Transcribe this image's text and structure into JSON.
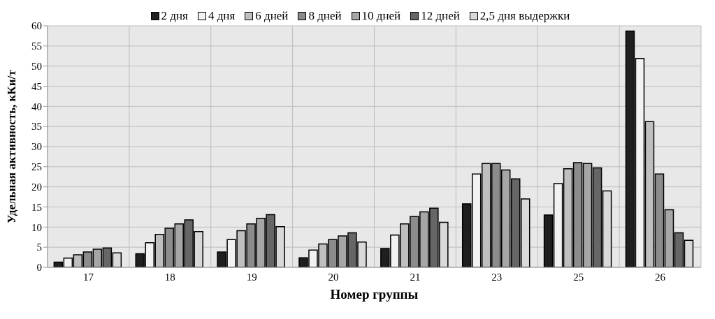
{
  "chart_data": {
    "type": "bar",
    "xlabel": "Номер группы",
    "ylabel": "Удельная активность, кКи/т",
    "categories": [
      "17",
      "18",
      "19",
      "20",
      "21",
      "23",
      "25",
      "26"
    ],
    "series": [
      {
        "name": "2 дня",
        "color": "#1f1f1f",
        "values": [
          1.3,
          3.4,
          3.8,
          2.4,
          4.7,
          15.8,
          13.0,
          58.7
        ]
      },
      {
        "name": "4 дня",
        "color": "#f2f2f2",
        "values": [
          2.3,
          6.1,
          6.9,
          4.3,
          8.0,
          23.2,
          20.8,
          51.9
        ]
      },
      {
        "name": "6 дней",
        "color": "#bfbfbf",
        "values": [
          3.1,
          8.2,
          9.1,
          5.8,
          10.8,
          25.8,
          24.5,
          36.2
        ]
      },
      {
        "name": "8 дней",
        "color": "#8c8c8c",
        "values": [
          3.8,
          9.7,
          10.8,
          6.9,
          12.6,
          25.8,
          26.0,
          23.2
        ]
      },
      {
        "name": "10 дней",
        "color": "#a6a6a6",
        "values": [
          4.5,
          10.8,
          12.2,
          7.8,
          13.8,
          24.2,
          25.8,
          14.3
        ]
      },
      {
        "name": "12 дней",
        "color": "#666666",
        "values": [
          4.8,
          11.8,
          13.1,
          8.6,
          14.7,
          22.0,
          24.7,
          8.6
        ]
      },
      {
        "name": "2,5 дня выдержки",
        "color": "#d9d9d9",
        "values": [
          3.6,
          8.9,
          10.1,
          6.3,
          11.2,
          17.0,
          19.0,
          6.7
        ]
      }
    ],
    "ylim": [
      0,
      60
    ],
    "yticks": [
      0,
      5,
      10,
      15,
      20,
      25,
      30,
      35,
      40,
      45,
      50,
      55,
      60
    ],
    "grid": true,
    "legend": "top"
  }
}
